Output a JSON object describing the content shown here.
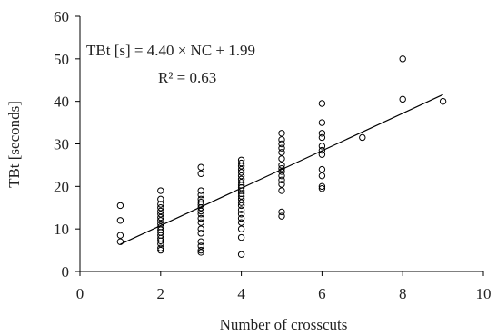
{
  "chart_data": {
    "type": "scatter",
    "title": "",
    "xlabel": "Number of crosscuts",
    "ylabel": "TBt [seconds]",
    "xlim": [
      0,
      10
    ],
    "ylim": [
      0,
      60
    ],
    "xticks": [
      "0",
      "2",
      "4",
      "6",
      "8",
      "10"
    ],
    "yticks": [
      "0",
      "10",
      "20",
      "30",
      "40",
      "50",
      "60"
    ],
    "grid": false,
    "annotations": {
      "equation": "TBt [s] = 4.40 × NC + 1.99",
      "r2": "R² = 0.63"
    },
    "regression": {
      "slope": 4.4,
      "intercept": 1.99,
      "x_range": [
        1,
        9
      ]
    },
    "points": [
      [
        1,
        7.0
      ],
      [
        1,
        8.5
      ],
      [
        1,
        12.0
      ],
      [
        1,
        15.5
      ],
      [
        2,
        5.0
      ],
      [
        2,
        5.5
      ],
      [
        2,
        6.5
      ],
      [
        2,
        7.2
      ],
      [
        2,
        7.8
      ],
      [
        2,
        8.5
      ],
      [
        2,
        9.2
      ],
      [
        2,
        9.8
      ],
      [
        2,
        10.5
      ],
      [
        2,
        11.2
      ],
      [
        2,
        12.0
      ],
      [
        2,
        12.7
      ],
      [
        2,
        13.5
      ],
      [
        2,
        14.2
      ],
      [
        2,
        15.0
      ],
      [
        2,
        15.8
      ],
      [
        2,
        17.0
      ],
      [
        2,
        19.0
      ],
      [
        3,
        4.5
      ],
      [
        3,
        5.0
      ],
      [
        3,
        6.0
      ],
      [
        3,
        7.0
      ],
      [
        3,
        9.0
      ],
      [
        3,
        10.0
      ],
      [
        3,
        11.5
      ],
      [
        3,
        12.5
      ],
      [
        3,
        13.5
      ],
      [
        3,
        14.2
      ],
      [
        3,
        15.0
      ],
      [
        3,
        15.7
      ],
      [
        3,
        16.3
      ],
      [
        3,
        17.0
      ],
      [
        3,
        18.0
      ],
      [
        3,
        19.0
      ],
      [
        3,
        23.0
      ],
      [
        3,
        24.5
      ],
      [
        4,
        4.0
      ],
      [
        4,
        8.0
      ],
      [
        4,
        10.0
      ],
      [
        4,
        11.5
      ],
      [
        4,
        12.5
      ],
      [
        4,
        13.5
      ],
      [
        4,
        14.5
      ],
      [
        4,
        15.5
      ],
      [
        4,
        16.2
      ],
      [
        4,
        17.0
      ],
      [
        4,
        17.7
      ],
      [
        4,
        18.3
      ],
      [
        4,
        19.0
      ],
      [
        4,
        19.7
      ],
      [
        4,
        20.3
      ],
      [
        4,
        21.0
      ],
      [
        4,
        21.7
      ],
      [
        4,
        22.5
      ],
      [
        4,
        23.3
      ],
      [
        4,
        24.0
      ],
      [
        4,
        24.8
      ],
      [
        4,
        25.5
      ],
      [
        4,
        26.2
      ],
      [
        5,
        13.0
      ],
      [
        5,
        14.0
      ],
      [
        5,
        19.0
      ],
      [
        5,
        20.5
      ],
      [
        5,
        21.5
      ],
      [
        5,
        22.5
      ],
      [
        5,
        23.5
      ],
      [
        5,
        24.2
      ],
      [
        5,
        25.0
      ],
      [
        5,
        26.5
      ],
      [
        5,
        28.0
      ],
      [
        5,
        29.0
      ],
      [
        5,
        30.0
      ],
      [
        5,
        31.0
      ],
      [
        5,
        32.5
      ],
      [
        6,
        19.5
      ],
      [
        6,
        20.0
      ],
      [
        6,
        22.5
      ],
      [
        6,
        24.0
      ],
      [
        6,
        27.5
      ],
      [
        6,
        28.5
      ],
      [
        6,
        29.5
      ],
      [
        6,
        31.5
      ],
      [
        6,
        32.5
      ],
      [
        6,
        35.0
      ],
      [
        6,
        39.5
      ],
      [
        7,
        31.5
      ],
      [
        8,
        40.5
      ],
      [
        8,
        50.0
      ],
      [
        9,
        40.0
      ]
    ]
  }
}
